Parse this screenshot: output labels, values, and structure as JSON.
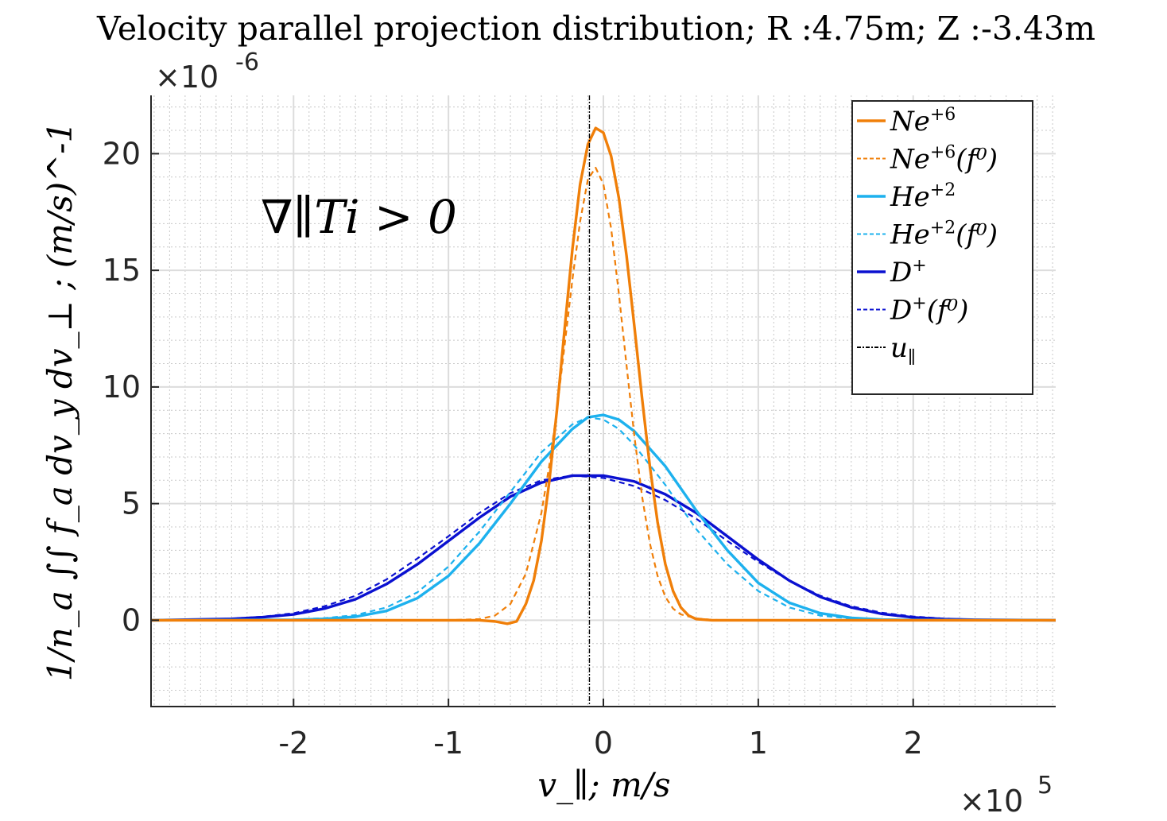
{
  "chart_data": {
    "type": "line",
    "title": "Velocity parallel projection distribution; R :4.75m; Z :-3.43m",
    "xlabel": "v_∥; m/s",
    "ylabel": "1/n_a ∫∫ f_a dv_y dv_⊥ ; (m/s)^-1",
    "x_multiplier": {
      "base": "×10",
      "exponent": "5"
    },
    "y_multiplier": {
      "base": "×10",
      "exponent": "-6"
    },
    "xlim": [
      -2.92,
      2.92
    ],
    "ylim": [
      -3.7,
      22.5
    ],
    "x_ticks": [
      -2,
      -1,
      0,
      1,
      2
    ],
    "x_tick_labels": [
      "-2",
      "-1",
      "0",
      "1",
      "2"
    ],
    "y_ticks": [
      0,
      5,
      10,
      15,
      20
    ],
    "y_tick_labels": [
      "0",
      "5",
      "10",
      "15",
      "20"
    ],
    "grid": true,
    "minor_grid": true,
    "annotation": "∇∥Ti > 0",
    "legend_position": "top-right",
    "u_parallel": -0.09,
    "series": [
      {
        "name": "Ne+6",
        "label_base": "Ne",
        "label_sup": "+6",
        "label_tail": "",
        "color": "#F07F09",
        "style": "solid",
        "x": [
          -2.92,
          -1.0,
          -0.8,
          -0.7,
          -0.62,
          -0.56,
          -0.5,
          -0.45,
          -0.4,
          -0.35,
          -0.3,
          -0.25,
          -0.2,
          -0.15,
          -0.1,
          -0.05,
          0.0,
          0.05,
          0.1,
          0.15,
          0.2,
          0.25,
          0.3,
          0.35,
          0.4,
          0.45,
          0.5,
          0.55,
          0.6,
          0.7,
          0.8,
          1.0,
          2.92
        ],
        "y": [
          0,
          0,
          0,
          -0.05,
          -0.15,
          -0.05,
          0.7,
          1.7,
          3.4,
          5.9,
          9.0,
          12.5,
          15.9,
          18.7,
          20.4,
          21.1,
          20.9,
          19.9,
          18.1,
          15.6,
          12.6,
          9.5,
          6.6,
          4.2,
          2.4,
          1.25,
          0.55,
          0.2,
          0.05,
          0,
          0,
          0,
          0
        ]
      },
      {
        "name": "Ne+6(f0)",
        "label_base": "Ne",
        "label_sup": "+6",
        "label_tail": "(f⁰)",
        "color": "#F07F09",
        "style": "dashed",
        "x": [
          -2.92,
          -1.0,
          -0.8,
          -0.7,
          -0.6,
          -0.5,
          -0.4,
          -0.35,
          -0.3,
          -0.25,
          -0.2,
          -0.15,
          -0.1,
          -0.05,
          0.0,
          0.05,
          0.1,
          0.15,
          0.2,
          0.25,
          0.3,
          0.35,
          0.4,
          0.45,
          0.5,
          0.6,
          0.7,
          0.8,
          1.0,
          2.92
        ],
        "y": [
          0,
          0,
          0.05,
          0.2,
          0.7,
          2.0,
          4.6,
          6.6,
          9.0,
          11.8,
          14.6,
          17.1,
          18.9,
          19.4,
          18.7,
          16.8,
          14.0,
          10.9,
          7.9,
          5.3,
          3.3,
          1.9,
          1.0,
          0.5,
          0.25,
          0.08,
          0.02,
          0,
          0,
          0
        ]
      },
      {
        "name": "He+2",
        "label_base": "He",
        "label_sup": "+2",
        "label_tail": "",
        "color": "#1DB1EE",
        "style": "solid",
        "x": [
          -2.92,
          -2.0,
          -1.8,
          -1.6,
          -1.4,
          -1.2,
          -1.0,
          -0.8,
          -0.6,
          -0.4,
          -0.2,
          -0.1,
          0.0,
          0.1,
          0.2,
          0.4,
          0.6,
          0.8,
          1.0,
          1.2,
          1.4,
          1.6,
          1.8,
          2.0,
          2.92
        ],
        "y": [
          0,
          0.02,
          0.06,
          0.15,
          0.4,
          0.95,
          1.9,
          3.3,
          5.0,
          6.8,
          8.2,
          8.7,
          8.8,
          8.6,
          8.1,
          6.6,
          4.7,
          3.0,
          1.6,
          0.75,
          0.3,
          0.1,
          0.03,
          0.01,
          0
        ]
      },
      {
        "name": "He+2(f0)",
        "label_base": "He",
        "label_sup": "+2",
        "label_tail": "(f⁰)",
        "color": "#1DB1EE",
        "style": "dashed",
        "x": [
          -2.92,
          -2.0,
          -1.8,
          -1.6,
          -1.4,
          -1.2,
          -1.0,
          -0.8,
          -0.6,
          -0.4,
          -0.2,
          -0.1,
          0.0,
          0.1,
          0.2,
          0.4,
          0.6,
          0.8,
          1.0,
          1.2,
          1.4,
          1.6,
          1.8,
          2.0,
          2.92
        ],
        "y": [
          0,
          0.03,
          0.09,
          0.22,
          0.55,
          1.2,
          2.3,
          3.8,
          5.5,
          7.2,
          8.4,
          8.7,
          8.6,
          8.2,
          7.5,
          5.8,
          3.9,
          2.4,
          1.25,
          0.55,
          0.2,
          0.07,
          0.02,
          0.01,
          0
        ]
      },
      {
        "name": "D+",
        "label_base": "D",
        "label_sup": "+",
        "label_tail": "",
        "color": "#0A10D0",
        "style": "solid",
        "x": [
          -2.92,
          -2.4,
          -2.2,
          -2.0,
          -1.8,
          -1.6,
          -1.4,
          -1.2,
          -1.0,
          -0.8,
          -0.6,
          -0.4,
          -0.2,
          0.0,
          0.2,
          0.4,
          0.6,
          0.8,
          1.0,
          1.2,
          1.4,
          1.6,
          1.8,
          2.0,
          2.2,
          2.4,
          2.92
        ],
        "y": [
          0,
          0.06,
          0.13,
          0.25,
          0.5,
          0.9,
          1.55,
          2.4,
          3.4,
          4.4,
          5.3,
          5.9,
          6.2,
          6.2,
          5.95,
          5.4,
          4.6,
          3.6,
          2.6,
          1.7,
          1.0,
          0.55,
          0.27,
          0.12,
          0.05,
          0.02,
          0
        ]
      },
      {
        "name": "D+(f0)",
        "label_base": "D",
        "label_sup": "+",
        "label_tail": "(f⁰)",
        "color": "#0A10D0",
        "style": "dashed",
        "x": [
          -2.92,
          -2.4,
          -2.2,
          -2.0,
          -1.8,
          -1.6,
          -1.4,
          -1.2,
          -1.0,
          -0.8,
          -0.6,
          -0.4,
          -0.2,
          0.0,
          0.2,
          0.4,
          0.6,
          0.8,
          1.0,
          1.2,
          1.4,
          1.6,
          1.8,
          2.0,
          2.2,
          2.4,
          2.92
        ],
        "y": [
          0,
          0.07,
          0.15,
          0.3,
          0.6,
          1.05,
          1.75,
          2.65,
          3.6,
          4.6,
          5.45,
          6.0,
          6.2,
          6.1,
          5.75,
          5.15,
          4.35,
          3.4,
          2.5,
          1.7,
          1.05,
          0.6,
          0.32,
          0.16,
          0.07,
          0.03,
          0
        ]
      }
    ],
    "u_parallel_legend": {
      "label_base": "u",
      "label_sub": "∥",
      "color": "#000000",
      "style": "dash-dot"
    }
  }
}
